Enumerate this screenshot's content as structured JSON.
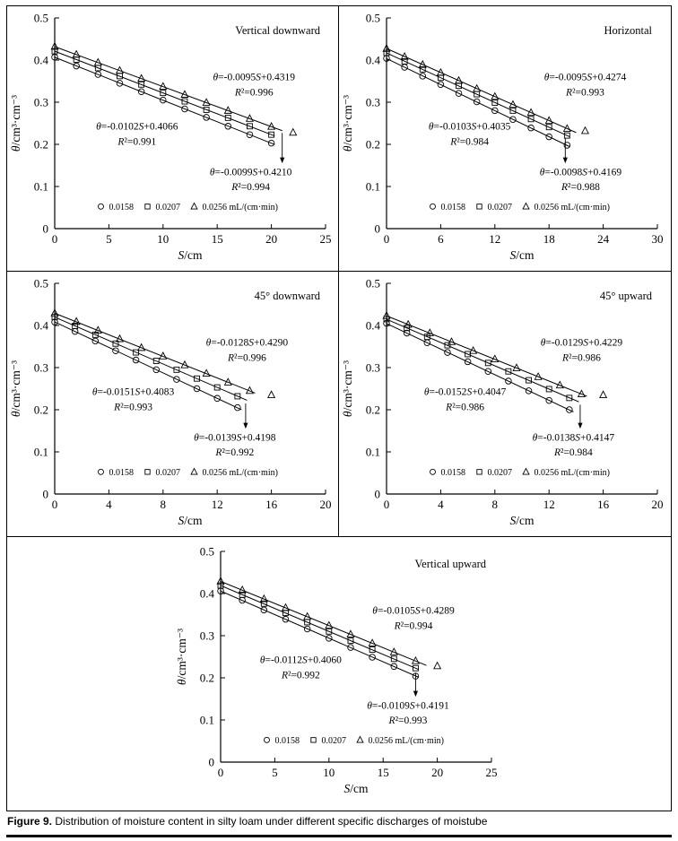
{
  "colors": {
    "axis": "#000000",
    "background": "#ffffff",
    "ink": "#000000"
  },
  "caption": {
    "label": "Figure 9.",
    "text": "Distribution of moisture content in silty loam under different specific discharges of moistube"
  },
  "chart_data": [
    {
      "type": "scatter",
      "title": "Vertical downward",
      "xlabel": "S/cm",
      "ylabel": "θ/cm³·cm⁻³",
      "xlim": [
        0,
        25
      ],
      "ylim": [
        0,
        0.5
      ],
      "xticks": [
        0,
        5,
        10,
        15,
        20,
        25
      ],
      "yticks": [
        "0",
        "0.1",
        "0.2",
        "0.3",
        "0.4",
        "0.5"
      ],
      "legend": [
        {
          "marker": "circle",
          "label": "0.0158"
        },
        {
          "marker": "square",
          "label": "0.0207"
        },
        {
          "marker": "triangle",
          "label": "0.0256 mL/(cm·min)"
        }
      ],
      "series": [
        {
          "name": "0.0158 mL/(cm·min)",
          "marker": "circle",
          "slope": -0.0102,
          "intercept": 0.4066,
          "r2": 0.991,
          "line_end": 20.3,
          "x": [
            0,
            2,
            4,
            6,
            8,
            10,
            12,
            14,
            16,
            18,
            20
          ],
          "y": [
            0.407,
            0.386,
            0.366,
            0.345,
            0.325,
            0.305,
            0.284,
            0.264,
            0.243,
            0.223,
            0.203
          ]
        },
        {
          "name": "0.0207 mL/(cm·min)",
          "marker": "square",
          "slope": -0.0099,
          "intercept": 0.421,
          "r2": 0.994,
          "line_end": 20.3,
          "x": [
            0,
            2,
            4,
            6,
            8,
            10,
            12,
            14,
            16,
            18,
            20
          ],
          "y": [
            0.421,
            0.401,
            0.381,
            0.362,
            0.342,
            0.322,
            0.302,
            0.282,
            0.263,
            0.243,
            0.223
          ]
        },
        {
          "name": "0.0256 mL/(cm·min)",
          "marker": "triangle",
          "slope": -0.0095,
          "intercept": 0.4319,
          "r2": 0.996,
          "line_end": 21,
          "x": [
            0,
            2,
            4,
            6,
            8,
            10,
            12,
            14,
            16,
            18,
            20,
            22
          ],
          "y": [
            0.432,
            0.413,
            0.394,
            0.375,
            0.356,
            0.337,
            0.318,
            0.299,
            0.28,
            0.261,
            0.242,
            0.228
          ]
        }
      ],
      "annotations": [
        {
          "eq": "θ=-0.0095S+0.4319",
          "r2": "R²=0.996",
          "x": 18.4,
          "y": 0.352,
          "y2": 0.316
        },
        {
          "eq": "θ=-0.0102S+0.4066",
          "r2": "R²=0.991",
          "x": 7.6,
          "y": 0.235,
          "y2": 0.199
        },
        {
          "eq": "θ=-0.0099S+0.4210",
          "r2": "R²=0.994",
          "x": 18.1,
          "y": 0.127,
          "y2": 0.091
        }
      ],
      "arrow": {
        "x": 21,
        "y1": 0.227,
        "y2": 0.155
      }
    },
    {
      "type": "scatter",
      "title": "Horizontal",
      "xlabel": "S/cm",
      "ylabel": "θ/cm³·cm⁻³",
      "xlim": [
        0,
        30
      ],
      "ylim": [
        0,
        0.5
      ],
      "xticks": [
        0,
        6,
        12,
        18,
        24,
        30
      ],
      "yticks": [
        "0",
        "0.1",
        "0.2",
        "0.3",
        "0.4",
        "0.5"
      ],
      "legend": [
        {
          "marker": "circle",
          "label": "0.0158"
        },
        {
          "marker": "square",
          "label": "0.0207"
        },
        {
          "marker": "triangle",
          "label": "0.0256 mL/(cm·min)"
        }
      ],
      "series": [
        {
          "name": "0.0158 mL/(cm·min)",
          "marker": "circle",
          "slope": -0.0103,
          "intercept": 0.4035,
          "r2": 0.984,
          "line_end": 20.3,
          "x": [
            0,
            2,
            4,
            6,
            8,
            10,
            12,
            14,
            16,
            18,
            20
          ],
          "y": [
            0.404,
            0.383,
            0.362,
            0.342,
            0.321,
            0.301,
            0.28,
            0.259,
            0.239,
            0.218,
            0.198
          ]
        },
        {
          "name": "0.0207 mL/(cm·min)",
          "marker": "square",
          "slope": -0.0098,
          "intercept": 0.4169,
          "r2": 0.988,
          "line_end": 20.3,
          "x": [
            0,
            2,
            4,
            6,
            8,
            10,
            12,
            14,
            16,
            18,
            20
          ],
          "y": [
            0.417,
            0.397,
            0.378,
            0.358,
            0.339,
            0.319,
            0.299,
            0.28,
            0.26,
            0.241,
            0.221
          ]
        },
        {
          "name": "0.0256 mL/(cm·min)",
          "marker": "triangle",
          "slope": -0.0095,
          "intercept": 0.4274,
          "r2": 0.993,
          "line_end": 21,
          "x": [
            0,
            2,
            4,
            6,
            8,
            10,
            12,
            14,
            16,
            18,
            20,
            22
          ],
          "y": [
            0.427,
            0.408,
            0.389,
            0.37,
            0.351,
            0.332,
            0.313,
            0.294,
            0.275,
            0.256,
            0.237,
            0.232
          ]
        }
      ],
      "annotations": [
        {
          "eq": "θ=-0.0095S+0.4274",
          "r2": "R²=0.993",
          "x": 22,
          "y": 0.352,
          "y2": 0.316
        },
        {
          "eq": "θ=-0.0103S+0.4035",
          "r2": "R²=0.984",
          "x": 9.2,
          "y": 0.235,
          "y2": 0.199
        },
        {
          "eq": "θ=-0.0098S+0.4169",
          "r2": "R²=0.988",
          "x": 21.5,
          "y": 0.127,
          "y2": 0.091
        }
      ],
      "arrow": {
        "x": 19.8,
        "y1": 0.215,
        "y2": 0.155
      }
    },
    {
      "type": "scatter",
      "title": "45° downward",
      "xlabel": "S/cm",
      "ylabel": "θ/cm³·cm⁻³",
      "xlim": [
        0,
        20
      ],
      "ylim": [
        0,
        0.5
      ],
      "xticks": [
        0,
        4,
        8,
        12,
        16,
        20
      ],
      "yticks": [
        "0",
        "0.1",
        "0.2",
        "0.3",
        "0.4",
        "0.5"
      ],
      "legend": [
        {
          "marker": "circle",
          "label": "0.0158"
        },
        {
          "marker": "square",
          "label": "0.0207"
        },
        {
          "marker": "triangle",
          "label": "0.0256 mL/(cm·min)"
        }
      ],
      "series": [
        {
          "name": "0.0158 mL/(cm·min)",
          "marker": "circle",
          "slope": -0.0151,
          "intercept": 0.4083,
          "r2": 0.993,
          "line_end": 13.8,
          "x": [
            0,
            1.5,
            3,
            4.5,
            6,
            7.5,
            9,
            10.5,
            12,
            13.5
          ],
          "y": [
            0.408,
            0.386,
            0.363,
            0.34,
            0.318,
            0.295,
            0.272,
            0.25,
            0.227,
            0.205
          ]
        },
        {
          "name": "0.0207 mL/(cm·min)",
          "marker": "square",
          "slope": -0.0139,
          "intercept": 0.4198,
          "r2": 0.992,
          "line_end": 14.2,
          "x": [
            0,
            1.5,
            3,
            4.5,
            6,
            7.5,
            9,
            10.5,
            12,
            13.5
          ],
          "y": [
            0.42,
            0.399,
            0.378,
            0.357,
            0.336,
            0.316,
            0.295,
            0.274,
            0.253,
            0.232
          ]
        },
        {
          "name": "0.0256 mL/(cm·min)",
          "marker": "triangle",
          "slope": -0.0128,
          "intercept": 0.429,
          "r2": 0.996,
          "line_end": 14.8,
          "x": [
            0,
            1.6,
            3.2,
            4.8,
            6.4,
            8,
            9.6,
            11.2,
            12.8,
            14.4,
            16
          ],
          "y": [
            0.429,
            0.409,
            0.388,
            0.368,
            0.347,
            0.327,
            0.306,
            0.286,
            0.265,
            0.245,
            0.235
          ]
        }
      ],
      "annotations": [
        {
          "eq": "θ=-0.0128S+0.4290",
          "r2": "R²=0.996",
          "x": 14.2,
          "y": 0.352,
          "y2": 0.316
        },
        {
          "eq": "θ=-0.0151S+0.4083",
          "r2": "R²=0.993",
          "x": 5.8,
          "y": 0.235,
          "y2": 0.199
        },
        {
          "eq": "θ=-0.0139S+0.4198",
          "r2": "R²=0.992",
          "x": 13.3,
          "y": 0.127,
          "y2": 0.091
        }
      ],
      "arrow": {
        "x": 14.1,
        "y1": 0.215,
        "y2": 0.155
      }
    },
    {
      "type": "scatter",
      "title": "45° upward",
      "xlabel": "S/cm",
      "ylabel": "θ/cm³·cm⁻³",
      "xlim": [
        0,
        20
      ],
      "ylim": [
        0,
        0.5
      ],
      "xticks": [
        0,
        4,
        8,
        12,
        16,
        20
      ],
      "yticks": [
        "0",
        "0.1",
        "0.2",
        "0.3",
        "0.4",
        "0.5"
      ],
      "legend": [
        {
          "marker": "circle",
          "label": "0.0158"
        },
        {
          "marker": "square",
          "label": "0.0207"
        },
        {
          "marker": "triangle",
          "label": "0.0256 mL/(cm·min)"
        }
      ],
      "series": [
        {
          "name": "0.0158 mL/(cm·min)",
          "marker": "circle",
          "slope": -0.0152,
          "intercept": 0.4047,
          "r2": 0.986,
          "line_end": 13.8,
          "x": [
            0,
            1.5,
            3,
            4.5,
            6,
            7.5,
            9,
            10.5,
            12,
            13.5
          ],
          "y": [
            0.405,
            0.382,
            0.359,
            0.336,
            0.314,
            0.291,
            0.268,
            0.245,
            0.222,
            0.2
          ]
        },
        {
          "name": "0.0207 mL/(cm·min)",
          "marker": "square",
          "slope": -0.0138,
          "intercept": 0.4147,
          "r2": 0.984,
          "line_end": 14.2,
          "x": [
            0,
            1.5,
            3,
            4.5,
            6,
            7.5,
            9,
            10.5,
            12,
            13.5
          ],
          "y": [
            0.415,
            0.394,
            0.373,
            0.353,
            0.332,
            0.311,
            0.291,
            0.27,
            0.249,
            0.228
          ]
        },
        {
          "name": "0.0256 mL/(cm·min)",
          "marker": "triangle",
          "slope": -0.0129,
          "intercept": 0.4229,
          "r2": 0.986,
          "line_end": 14.8,
          "x": [
            0,
            1.6,
            3.2,
            4.8,
            6.4,
            8,
            9.6,
            11.2,
            12.8,
            14.4,
            16
          ],
          "y": [
            0.423,
            0.402,
            0.382,
            0.361,
            0.34,
            0.32,
            0.299,
            0.278,
            0.258,
            0.237,
            0.235
          ]
        }
      ],
      "annotations": [
        {
          "eq": "θ=-0.0129S+0.4229",
          "r2": "R²=0.986",
          "x": 14.4,
          "y": 0.352,
          "y2": 0.316
        },
        {
          "eq": "θ=-0.0152S+0.4047",
          "r2": "R²=0.986",
          "x": 5.8,
          "y": 0.235,
          "y2": 0.199
        },
        {
          "eq": "θ=-0.0138S+0.4147",
          "r2": "R²=0.984",
          "x": 13.8,
          "y": 0.127,
          "y2": 0.091
        }
      ],
      "arrow": {
        "x": 14.3,
        "y1": 0.212,
        "y2": 0.155
      }
    },
    {
      "type": "scatter",
      "title": "Vertical upward",
      "xlabel": "S/cm",
      "ylabel": "θ/cm³·cm⁻³",
      "xlim": [
        0,
        25
      ],
      "ylim": [
        0,
        0.5
      ],
      "xticks": [
        0,
        5,
        10,
        15,
        20,
        25
      ],
      "yticks": [
        "0",
        "0.1",
        "0.2",
        "0.3",
        "0.4",
        "0.5"
      ],
      "legend": [
        {
          "marker": "circle",
          "label": "0.0158"
        },
        {
          "marker": "square",
          "label": "0.0207"
        },
        {
          "marker": "triangle",
          "label": "0.0256 mL/(cm·min)"
        }
      ],
      "series": [
        {
          "name": "0.0158 mL/(cm·min)",
          "marker": "circle",
          "slope": -0.0112,
          "intercept": 0.406,
          "r2": 0.992,
          "line_end": 18.3,
          "x": [
            0,
            2,
            4,
            6,
            8,
            10,
            12,
            14,
            16,
            18
          ],
          "y": [
            0.406,
            0.384,
            0.361,
            0.339,
            0.316,
            0.294,
            0.272,
            0.249,
            0.227,
            0.204
          ]
        },
        {
          "name": "0.0207 mL/(cm·min)",
          "marker": "square",
          "slope": -0.0109,
          "intercept": 0.4191,
          "r2": 0.993,
          "line_end": 18.3,
          "x": [
            0,
            2,
            4,
            6,
            8,
            10,
            12,
            14,
            16,
            18
          ],
          "y": [
            0.419,
            0.397,
            0.376,
            0.354,
            0.332,
            0.31,
            0.288,
            0.267,
            0.245,
            0.223
          ]
        },
        {
          "name": "0.0256 mL/(cm·min)",
          "marker": "triangle",
          "slope": -0.0105,
          "intercept": 0.4289,
          "r2": 0.994,
          "line_end": 19,
          "x": [
            0,
            2,
            4,
            6,
            8,
            10,
            12,
            14,
            16,
            18,
            20
          ],
          "y": [
            0.429,
            0.408,
            0.387,
            0.366,
            0.345,
            0.324,
            0.303,
            0.282,
            0.261,
            0.24,
            0.228
          ]
        }
      ],
      "annotations": [
        {
          "eq": "θ=-0.0105S+0.4289",
          "r2": "R²=0.994",
          "x": 17.8,
          "y": 0.352,
          "y2": 0.316
        },
        {
          "eq": "θ=-0.0112S+0.4060",
          "r2": "R²=0.992",
          "x": 7.4,
          "y": 0.235,
          "y2": 0.199
        },
        {
          "eq": "θ=-0.0109S+0.4191",
          "r2": "R²=0.993",
          "x": 17.3,
          "y": 0.127,
          "y2": 0.091
        }
      ],
      "arrow": {
        "x": 18,
        "y1": 0.212,
        "y2": 0.155
      }
    }
  ]
}
